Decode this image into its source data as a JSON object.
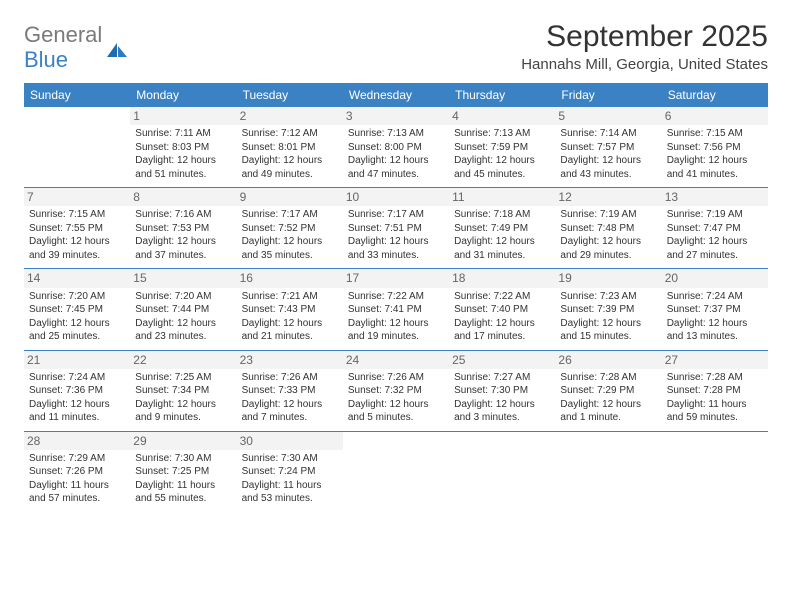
{
  "logo": {
    "word1": "General",
    "word2": "Blue",
    "icon_color": "#1f6bb0"
  },
  "title": "September 2025",
  "location": "Hannahs Mill, Georgia, United States",
  "colors": {
    "header_bg": "#3b82c4",
    "header_text": "#ffffff",
    "border": "#3b82c4",
    "daynum_bg": "#f3f3f3",
    "daynum_text": "#666666",
    "body_text": "#333333",
    "logo_gray": "#7a7a7a",
    "logo_blue": "#3b82c4"
  },
  "day_headers": [
    "Sunday",
    "Monday",
    "Tuesday",
    "Wednesday",
    "Thursday",
    "Friday",
    "Saturday"
  ],
  "weeks": [
    [
      {
        "num": "",
        "sunrise": "",
        "sunset": "",
        "daylight": ""
      },
      {
        "num": "1",
        "sunrise": "Sunrise: 7:11 AM",
        "sunset": "Sunset: 8:03 PM",
        "daylight": "Daylight: 12 hours and 51 minutes."
      },
      {
        "num": "2",
        "sunrise": "Sunrise: 7:12 AM",
        "sunset": "Sunset: 8:01 PM",
        "daylight": "Daylight: 12 hours and 49 minutes."
      },
      {
        "num": "3",
        "sunrise": "Sunrise: 7:13 AM",
        "sunset": "Sunset: 8:00 PM",
        "daylight": "Daylight: 12 hours and 47 minutes."
      },
      {
        "num": "4",
        "sunrise": "Sunrise: 7:13 AM",
        "sunset": "Sunset: 7:59 PM",
        "daylight": "Daylight: 12 hours and 45 minutes."
      },
      {
        "num": "5",
        "sunrise": "Sunrise: 7:14 AM",
        "sunset": "Sunset: 7:57 PM",
        "daylight": "Daylight: 12 hours and 43 minutes."
      },
      {
        "num": "6",
        "sunrise": "Sunrise: 7:15 AM",
        "sunset": "Sunset: 7:56 PM",
        "daylight": "Daylight: 12 hours and 41 minutes."
      }
    ],
    [
      {
        "num": "7",
        "sunrise": "Sunrise: 7:15 AM",
        "sunset": "Sunset: 7:55 PM",
        "daylight": "Daylight: 12 hours and 39 minutes."
      },
      {
        "num": "8",
        "sunrise": "Sunrise: 7:16 AM",
        "sunset": "Sunset: 7:53 PM",
        "daylight": "Daylight: 12 hours and 37 minutes."
      },
      {
        "num": "9",
        "sunrise": "Sunrise: 7:17 AM",
        "sunset": "Sunset: 7:52 PM",
        "daylight": "Daylight: 12 hours and 35 minutes."
      },
      {
        "num": "10",
        "sunrise": "Sunrise: 7:17 AM",
        "sunset": "Sunset: 7:51 PM",
        "daylight": "Daylight: 12 hours and 33 minutes."
      },
      {
        "num": "11",
        "sunrise": "Sunrise: 7:18 AM",
        "sunset": "Sunset: 7:49 PM",
        "daylight": "Daylight: 12 hours and 31 minutes."
      },
      {
        "num": "12",
        "sunrise": "Sunrise: 7:19 AM",
        "sunset": "Sunset: 7:48 PM",
        "daylight": "Daylight: 12 hours and 29 minutes."
      },
      {
        "num": "13",
        "sunrise": "Sunrise: 7:19 AM",
        "sunset": "Sunset: 7:47 PM",
        "daylight": "Daylight: 12 hours and 27 minutes."
      }
    ],
    [
      {
        "num": "14",
        "sunrise": "Sunrise: 7:20 AM",
        "sunset": "Sunset: 7:45 PM",
        "daylight": "Daylight: 12 hours and 25 minutes."
      },
      {
        "num": "15",
        "sunrise": "Sunrise: 7:20 AM",
        "sunset": "Sunset: 7:44 PM",
        "daylight": "Daylight: 12 hours and 23 minutes."
      },
      {
        "num": "16",
        "sunrise": "Sunrise: 7:21 AM",
        "sunset": "Sunset: 7:43 PM",
        "daylight": "Daylight: 12 hours and 21 minutes."
      },
      {
        "num": "17",
        "sunrise": "Sunrise: 7:22 AM",
        "sunset": "Sunset: 7:41 PM",
        "daylight": "Daylight: 12 hours and 19 minutes."
      },
      {
        "num": "18",
        "sunrise": "Sunrise: 7:22 AM",
        "sunset": "Sunset: 7:40 PM",
        "daylight": "Daylight: 12 hours and 17 minutes."
      },
      {
        "num": "19",
        "sunrise": "Sunrise: 7:23 AM",
        "sunset": "Sunset: 7:39 PM",
        "daylight": "Daylight: 12 hours and 15 minutes."
      },
      {
        "num": "20",
        "sunrise": "Sunrise: 7:24 AM",
        "sunset": "Sunset: 7:37 PM",
        "daylight": "Daylight: 12 hours and 13 minutes."
      }
    ],
    [
      {
        "num": "21",
        "sunrise": "Sunrise: 7:24 AM",
        "sunset": "Sunset: 7:36 PM",
        "daylight": "Daylight: 12 hours and 11 minutes."
      },
      {
        "num": "22",
        "sunrise": "Sunrise: 7:25 AM",
        "sunset": "Sunset: 7:34 PM",
        "daylight": "Daylight: 12 hours and 9 minutes."
      },
      {
        "num": "23",
        "sunrise": "Sunrise: 7:26 AM",
        "sunset": "Sunset: 7:33 PM",
        "daylight": "Daylight: 12 hours and 7 minutes."
      },
      {
        "num": "24",
        "sunrise": "Sunrise: 7:26 AM",
        "sunset": "Sunset: 7:32 PM",
        "daylight": "Daylight: 12 hours and 5 minutes."
      },
      {
        "num": "25",
        "sunrise": "Sunrise: 7:27 AM",
        "sunset": "Sunset: 7:30 PM",
        "daylight": "Daylight: 12 hours and 3 minutes."
      },
      {
        "num": "26",
        "sunrise": "Sunrise: 7:28 AM",
        "sunset": "Sunset: 7:29 PM",
        "daylight": "Daylight: 12 hours and 1 minute."
      },
      {
        "num": "27",
        "sunrise": "Sunrise: 7:28 AM",
        "sunset": "Sunset: 7:28 PM",
        "daylight": "Daylight: 11 hours and 59 minutes."
      }
    ],
    [
      {
        "num": "28",
        "sunrise": "Sunrise: 7:29 AM",
        "sunset": "Sunset: 7:26 PM",
        "daylight": "Daylight: 11 hours and 57 minutes."
      },
      {
        "num": "29",
        "sunrise": "Sunrise: 7:30 AM",
        "sunset": "Sunset: 7:25 PM",
        "daylight": "Daylight: 11 hours and 55 minutes."
      },
      {
        "num": "30",
        "sunrise": "Sunrise: 7:30 AM",
        "sunset": "Sunset: 7:24 PM",
        "daylight": "Daylight: 11 hours and 53 minutes."
      },
      {
        "num": "",
        "sunrise": "",
        "sunset": "",
        "daylight": ""
      },
      {
        "num": "",
        "sunrise": "",
        "sunset": "",
        "daylight": ""
      },
      {
        "num": "",
        "sunrise": "",
        "sunset": "",
        "daylight": ""
      },
      {
        "num": "",
        "sunrise": "",
        "sunset": "",
        "daylight": ""
      }
    ]
  ]
}
